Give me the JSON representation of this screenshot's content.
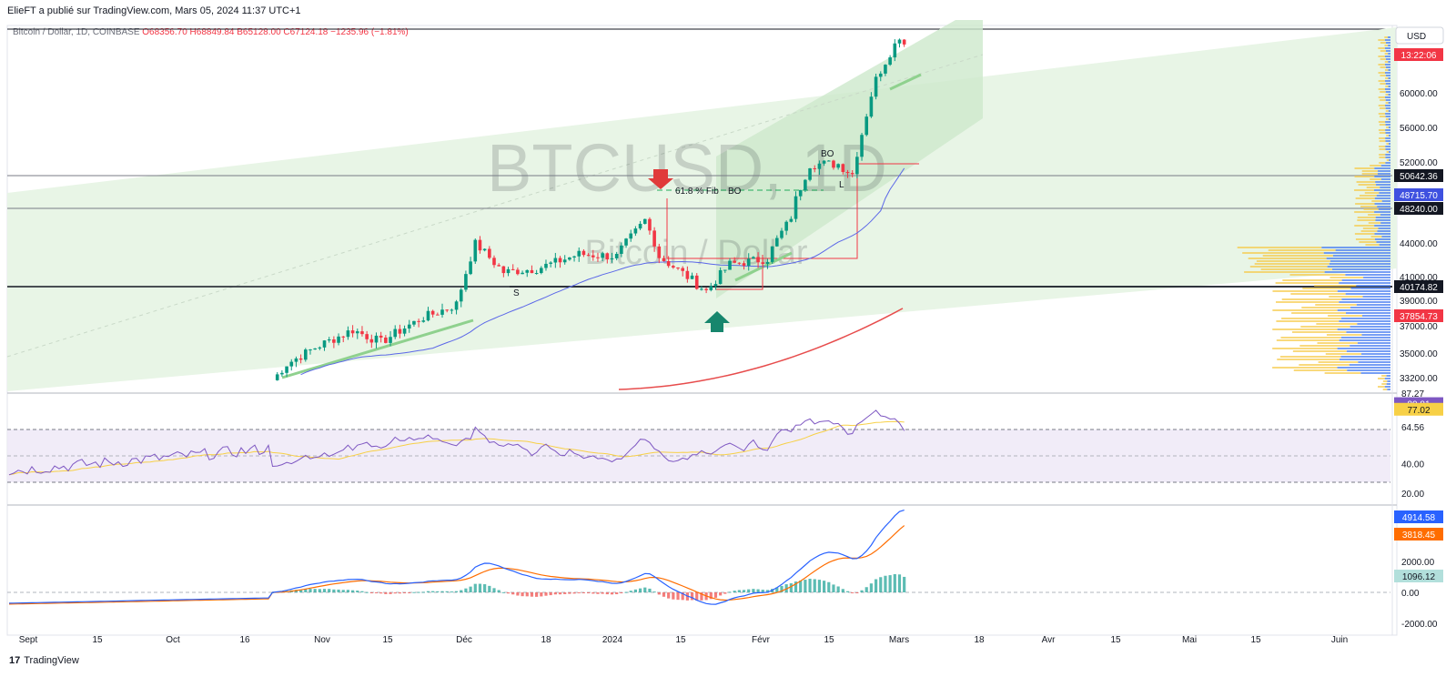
{
  "header": {
    "published": "ElieFT a publié sur TradingView.com, Mars 05, 2024 11:37 UTC+1",
    "symbol_line": "Bitcoin / Dollar, 1D, COINBASE",
    "ohlc": "O68356.70  H68849.84  B65128.00  C67124.18  −1235.96 (−1.81%)"
  },
  "watermark": {
    "symbol": "BTCUSD, 1D",
    "name": "Bitcoin / Dollar"
  },
  "branding": {
    "logo": "17",
    "name": "TradingView"
  },
  "currency": "USD",
  "countdown": "13:22:06",
  "colors": {
    "up": "#089981",
    "down": "#f23645",
    "ma_blue": "#5b67e8",
    "ma_red": "#e74c4c",
    "rsi": "#7e57c2",
    "rsi_ma": "#f7d046",
    "macd": "#2962ff",
    "signal": "#ff6d00",
    "channel": "#d8efd6",
    "vp_up": "#4a7df0",
    "vp_down": "#f6c945"
  },
  "annotations": {
    "fib": "61.8 % Fib",
    "bo1": "BO",
    "bo2": "BO",
    "s": "S",
    "l": "L"
  },
  "chart_data": [
    {
      "type": "candlestick",
      "x_ticks": [
        "Sept",
        "15",
        "Oct",
        "16",
        "Nov",
        "15",
        "Déc",
        "18",
        "2024",
        "15",
        "Févr",
        "15",
        "Mars",
        "18",
        "Avr",
        "15",
        "Mai",
        "15",
        "Juin"
      ],
      "y_ticks": [
        "60000.00",
        "56000.00",
        "52000.00",
        "44000.00",
        "41000.00",
        "39000.00",
        "37000.00",
        "35000.00",
        "33200.00"
      ],
      "price_tags": [
        {
          "label": "50642.36",
          "kind": "level"
        },
        {
          "label": "48715.70",
          "kind": "ma50"
        },
        {
          "label": "48240.00",
          "kind": "level"
        },
        {
          "label": "40174.82",
          "kind": "level"
        },
        {
          "label": "37854.73",
          "kind": "ma200"
        }
      ],
      "horizontal_levels": [
        50642.36,
        48240.0,
        40174.82
      ],
      "close_path": [
        [
          "2023-10-23",
          33000
        ],
        [
          "2023-10-26",
          34200
        ],
        [
          "2023-11-01",
          35400
        ],
        [
          "2023-11-09",
          36700
        ],
        [
          "2023-11-15",
          35800
        ],
        [
          "2023-11-24",
          37700
        ],
        [
          "2023-12-01",
          38700
        ],
        [
          "2023-12-05",
          44000
        ],
        [
          "2023-12-11",
          41400
        ],
        [
          "2023-12-18",
          41700
        ],
        [
          "2023-12-27",
          43000
        ],
        [
          "2024-01-04",
          42800
        ],
        [
          "2024-01-10",
          46800
        ],
        [
          "2024-01-13",
          42800
        ],
        [
          "2024-01-23",
          39800
        ],
        [
          "2024-01-28",
          42100
        ],
        [
          "2024-02-05",
          42600
        ],
        [
          "2024-02-10",
          47200
        ],
        [
          "2024-02-14",
          51800
        ],
        [
          "2024-02-20",
          51800
        ],
        [
          "2024-02-23",
          50800
        ],
        [
          "2024-02-28",
          62000
        ],
        [
          "2024-03-04",
          68400
        ],
        [
          "2024-03-05",
          67124.18
        ]
      ]
    },
    {
      "type": "line",
      "name": "RSI",
      "y_ticks": [
        "87.27",
        "64.56",
        "40.00",
        "20.00"
      ],
      "tags": [
        "80.81",
        "77.02"
      ],
      "levels": [
        70,
        50,
        30
      ]
    },
    {
      "type": "line",
      "name": "MACD",
      "y_ticks": [
        "2000.00",
        "0.00",
        "-2000.00"
      ],
      "tags": [
        "4914.58",
        "3818.45",
        "1096.12"
      ]
    }
  ]
}
